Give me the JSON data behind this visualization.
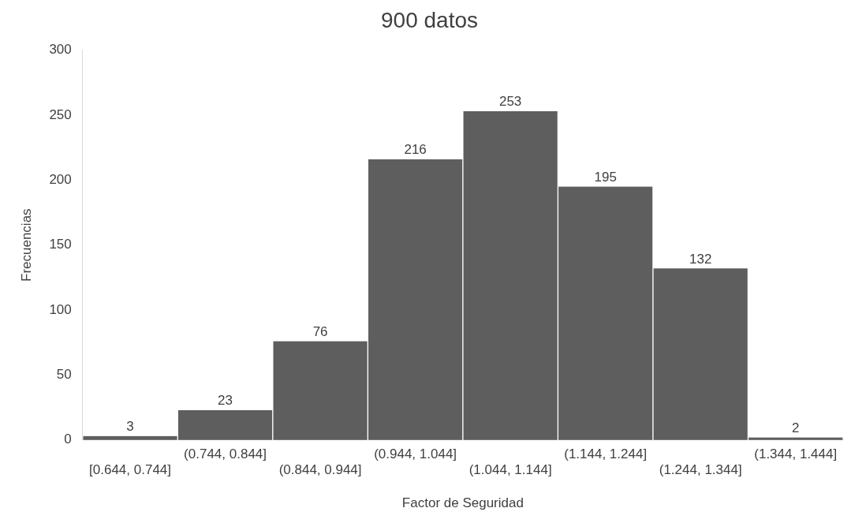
{
  "chart_data": {
    "type": "bar",
    "title": "900 datos",
    "xlabel": "Factor de Seguridad",
    "ylabel": "Frecuencias",
    "categories": [
      "[0.644, 0.744]",
      "(0.744, 0.844]",
      "(0.844, 0.944]",
      "(0.944, 1.044]",
      "(1.044, 1.144]",
      "(1.144, 1.244]",
      "(1.244, 1.344]",
      "(1.344, 1.444]"
    ],
    "values": [
      3,
      23,
      76,
      216,
      253,
      195,
      132,
      2
    ],
    "color": "#5e5e5e",
    "ylim": [
      0,
      300
    ],
    "yticks": [
      0,
      50,
      100,
      150,
      200,
      250,
      300
    ],
    "grid": false,
    "data_labels": true
  }
}
